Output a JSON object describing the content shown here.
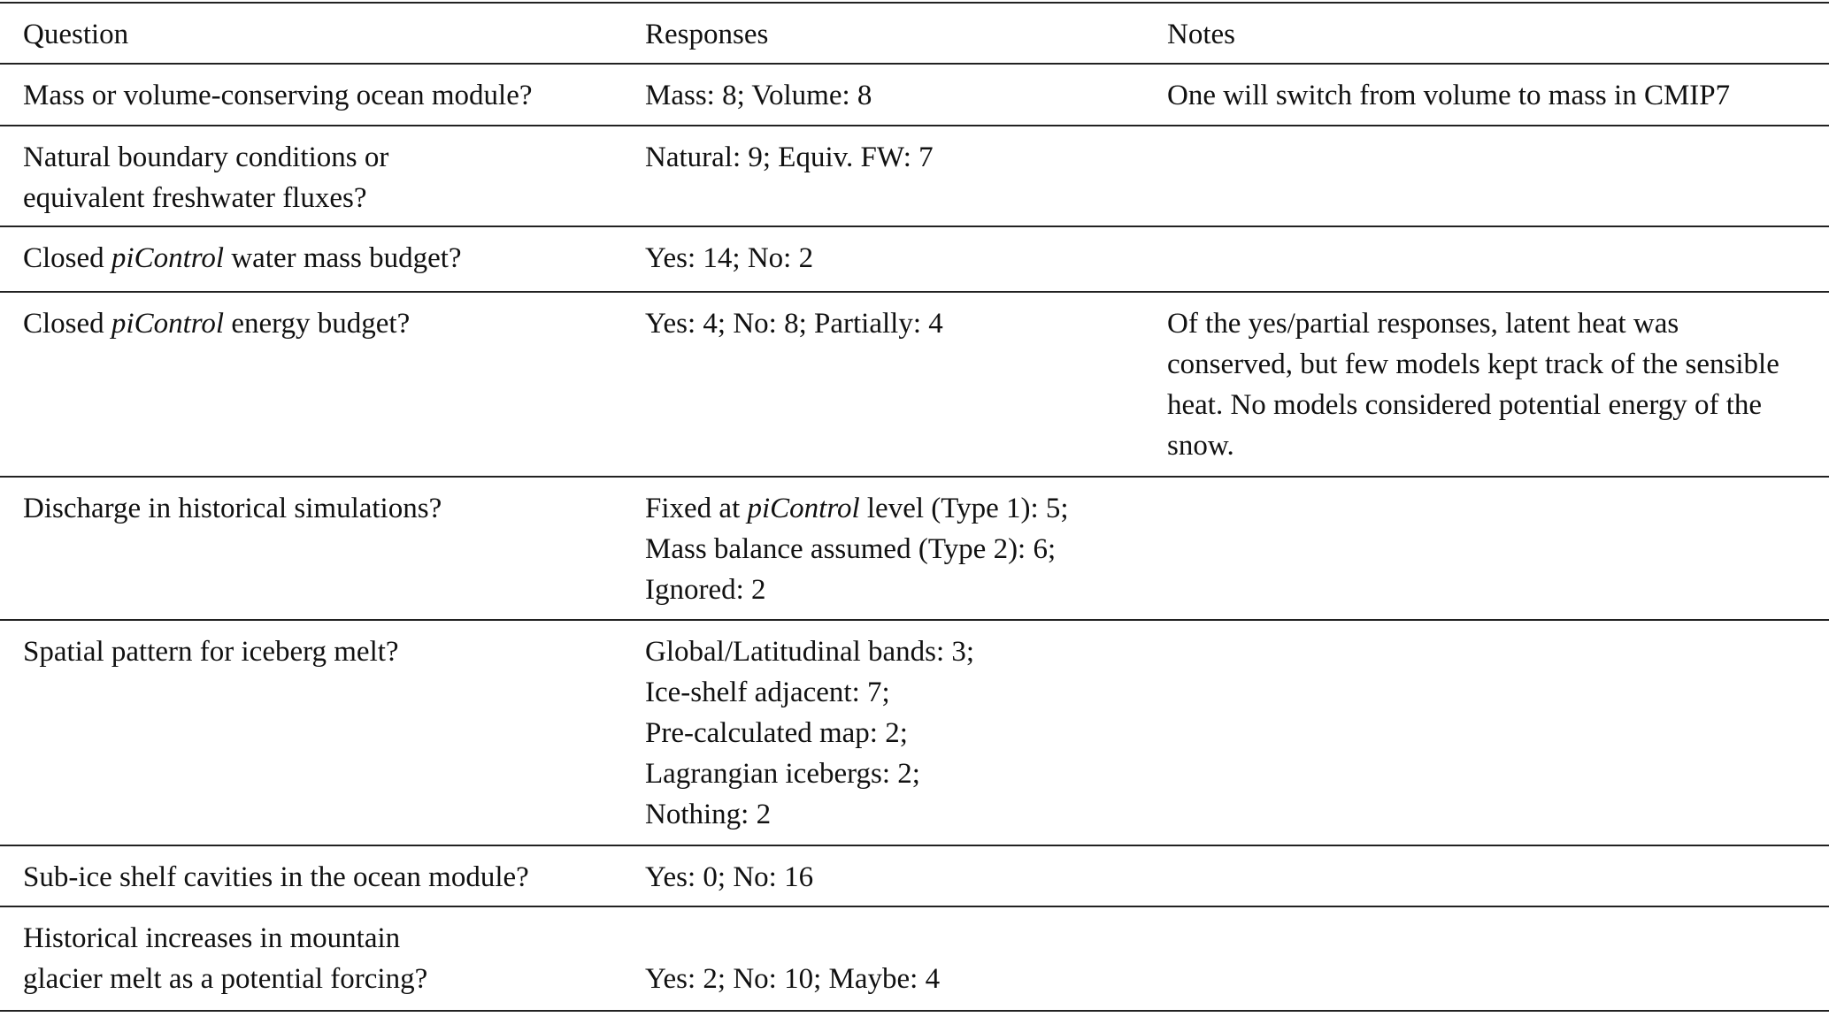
{
  "headers": {
    "question": "Question",
    "responses": "Responses",
    "notes": "Notes"
  },
  "rows": [
    {
      "question": [
        "Mass or volume-conserving ocean module?"
      ],
      "responses": [
        "Mass: 8; Volume: 8"
      ],
      "notes": "One will switch from volume to mass in CMIP7"
    },
    {
      "question": [
        "Natural boundary conditions or",
        "equivalent freshwater fluxes?"
      ],
      "responses": [
        "Natural: 9; Equiv. FW: 7"
      ],
      "notes": ""
    },
    {
      "question_pre": "Closed ",
      "question_em": "piControl",
      "question_post": " water mass budget?",
      "responses": [
        "Yes: 14; No: 2"
      ],
      "notes": ""
    },
    {
      "question_pre": "Closed ",
      "question_em": "piControl",
      "question_post": " energy budget?",
      "responses": [
        "Yes: 4; No: 8; Partially: 4"
      ],
      "notes": "Of the yes/partial responses, latent heat was conserved, but few models kept track of the sensible heat. No models considered potential energy of the snow."
    },
    {
      "question": [
        "Discharge in historical simulations?"
      ],
      "response_pre": "Fixed at ",
      "response_em": "piControl",
      "response_post": " level (Type 1): 5;",
      "responses": [
        "Mass balance assumed (Type 2): 6;",
        "Ignored: 2"
      ],
      "notes": ""
    },
    {
      "question": [
        "Spatial pattern for iceberg melt?"
      ],
      "responses": [
        "Global/Latitudinal bands: 3;",
        "Ice-shelf adjacent: 7;",
        "Pre-calculated map: 2;",
        "Lagrangian icebergs: 2;",
        "Nothing: 2"
      ],
      "notes": ""
    },
    {
      "question": [
        "Sub-ice shelf cavities in the ocean module?"
      ],
      "responses": [
        "Yes: 0; No: 16"
      ],
      "notes": ""
    },
    {
      "question": [
        "Historical increases in mountain",
        "glacier melt as a potential forcing?"
      ],
      "responses": [
        "Yes: 2; No: 10; Maybe: 4"
      ],
      "notes": ""
    }
  ]
}
